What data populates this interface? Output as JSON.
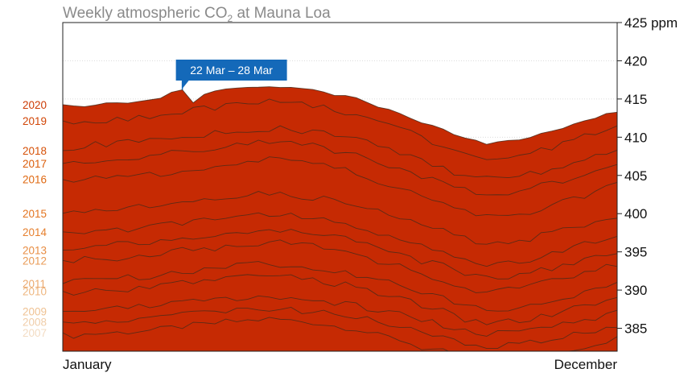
{
  "chart_data": {
    "type": "area",
    "title_main": "Weekly atmospheric CO",
    "title_sub": "2",
    "title_end": " at Mauna Loa",
    "x_labels": {
      "start": "January",
      "end": "December"
    },
    "y_unit": "ppm",
    "ylim": [
      382,
      425
    ],
    "yticks": [
      {
        "value": 425,
        "label": "425 ppm"
      },
      {
        "value": 420,
        "label": "420"
      },
      {
        "value": 415,
        "label": "415"
      },
      {
        "value": 410,
        "label": "410"
      },
      {
        "value": 405,
        "label": "405"
      },
      {
        "value": 400,
        "label": "400"
      },
      {
        "value": 395,
        "label": "395"
      },
      {
        "value": 390,
        "label": "390"
      },
      {
        "value": 385,
        "label": "385"
      }
    ],
    "week_range": [
      1,
      52
    ],
    "years": [
      "2007",
      "2008",
      "2009",
      "2010",
      "2011",
      "2012",
      "2013",
      "2014",
      "2015",
      "2016",
      "2017",
      "2018",
      "2019",
      "2020"
    ],
    "year_colors": [
      "#fce8d4",
      "#fbdcbe",
      "#fad0a6",
      "#f9c48f",
      "#f8b678",
      "#f7a861",
      "#f69a4a",
      "#f58c33",
      "#f47e1e",
      "#f0700f",
      "#ea5e0a",
      "#e04c07",
      "#d43a05",
      "#c62a03"
    ],
    "year_label_colors": [
      "#f3dcc3",
      "#f0cda9",
      "#efc293",
      "#eeb67f",
      "#eba86c",
      "#e99b57",
      "#e88d43",
      "#e6802f",
      "#e3741f",
      "#df6912",
      "#db5d0a",
      "#d65108",
      "#d14506",
      "#cc3b04"
    ],
    "series": [
      {
        "name": "2007",
        "seasonal_max": 386.2,
        "seasonal_min": 380.5
      },
      {
        "name": "2008",
        "seasonal_max": 387.6,
        "seasonal_min": 382.6
      },
      {
        "name": "2009",
        "seasonal_max": 389.2,
        "seasonal_min": 384.2
      },
      {
        "name": "2010",
        "seasonal_max": 391.9,
        "seasonal_min": 385.7
      },
      {
        "name": "2011",
        "seasonal_max": 393.4,
        "seasonal_min": 387.4
      },
      {
        "name": "2012",
        "seasonal_max": 396.2,
        "seasonal_min": 389.8
      },
      {
        "name": "2013",
        "seasonal_max": 398.0,
        "seasonal_min": 391.6
      },
      {
        "name": "2014",
        "seasonal_max": 399.9,
        "seasonal_min": 393.5
      },
      {
        "name": "2015",
        "seasonal_max": 402.6,
        "seasonal_min": 396.2
      },
      {
        "name": "2016",
        "seasonal_max": 407.0,
        "seasonal_min": 399.6
      },
      {
        "name": "2017",
        "seasonal_max": 409.3,
        "seasonal_min": 402.5
      },
      {
        "name": "2018",
        "seasonal_max": 411.2,
        "seasonal_min": 404.5
      },
      {
        "name": "2019",
        "seasonal_max": 414.7,
        "seasonal_min": 407.2
      },
      {
        "name": "2020",
        "seasonal_max": 417.0,
        "seasonal_min": 409.5
      }
    ],
    "highlight": {
      "series": "2020",
      "week": 12,
      "value": 416.2,
      "label": "22 Mar – 28 Mar",
      "color": "#1469b9"
    },
    "grid": true
  }
}
